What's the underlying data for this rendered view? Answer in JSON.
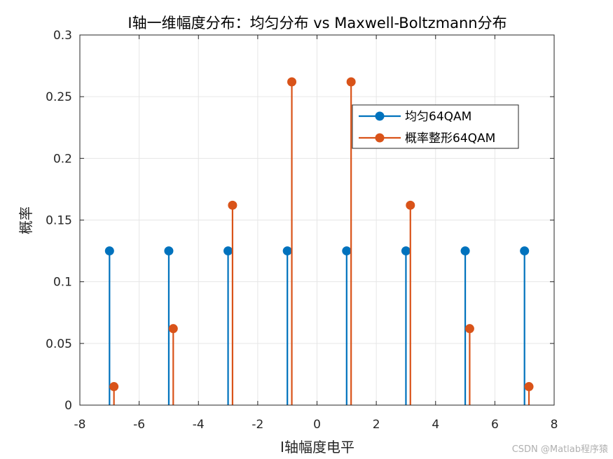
{
  "chart_data": {
    "type": "stem",
    "title": "I轴一维幅度分布：均匀分布 vs Maxwell-Boltzmann分布",
    "xlabel": "I轴幅度电平",
    "ylabel": "概率",
    "xlim": [
      -8,
      8
    ],
    "ylim": [
      0,
      0.3
    ],
    "xticks": [
      "-8",
      "-6",
      "-4",
      "-2",
      "0",
      "2",
      "4",
      "6",
      "8"
    ],
    "yticks": [
      "0",
      "0.05",
      "0.1",
      "0.15",
      "0.2",
      "0.25",
      "0.3"
    ],
    "xtick_values": [
      -8,
      -6,
      -4,
      -2,
      0,
      2,
      4,
      6,
      8
    ],
    "ytick_values": [
      0,
      0.05,
      0.1,
      0.15,
      0.2,
      0.25,
      0.3
    ],
    "grid": true,
    "legend_position": "top-right",
    "series": [
      {
        "name": "均匀64QAM",
        "color": "#0072BD",
        "x": [
          -7,
          -5,
          -3,
          -1,
          1,
          3,
          5,
          7
        ],
        "values": [
          0.125,
          0.125,
          0.125,
          0.125,
          0.125,
          0.125,
          0.125,
          0.125
        ]
      },
      {
        "name": "概率整形64QAM",
        "color": "#D95319",
        "x": [
          -6.85,
          -4.85,
          -2.85,
          -0.85,
          1.15,
          3.15,
          5.15,
          7.15
        ],
        "values": [
          0.015,
          0.062,
          0.162,
          0.262,
          0.262,
          0.162,
          0.062,
          0.015
        ]
      }
    ]
  },
  "watermark": "CSDN @Matlab程序猿"
}
